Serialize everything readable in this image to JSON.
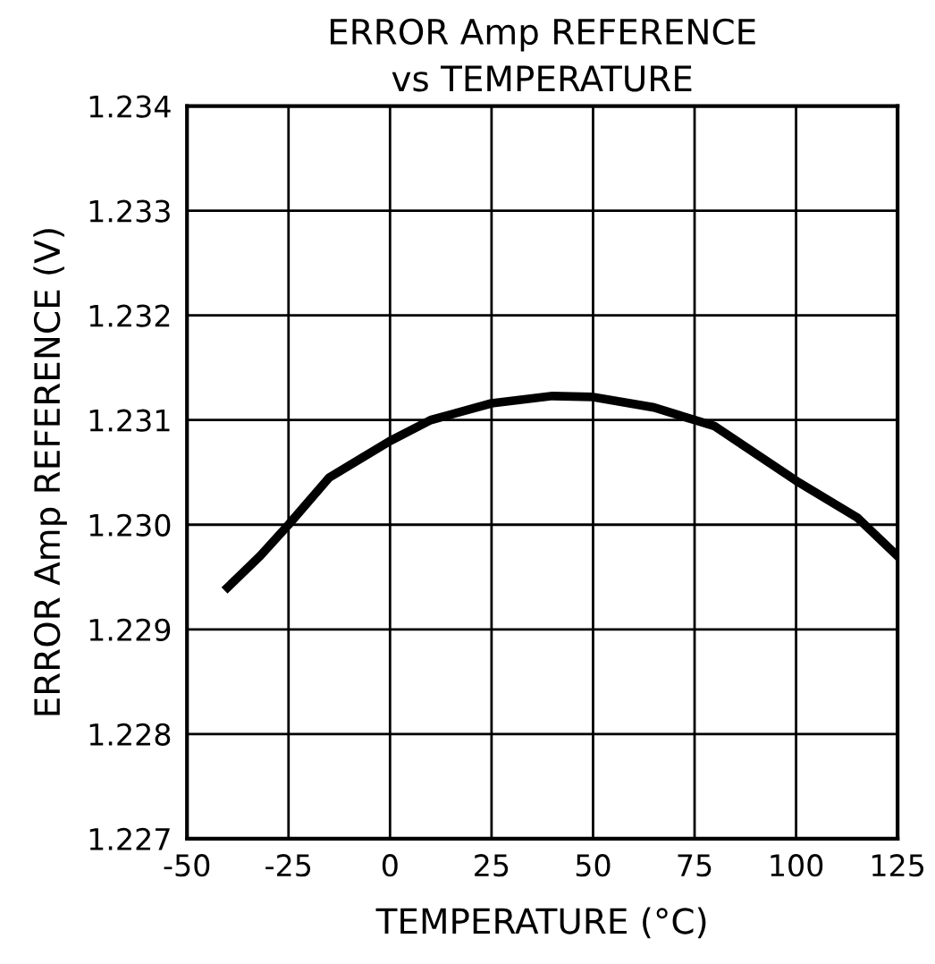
{
  "chart_data": {
    "type": "line",
    "title": "ERROR Amp REFERENCE\nvs TEMPERATURE",
    "xlabel": "TEMPERATURE (°C)",
    "ylabel": "ERROR Amp REFERENCE (V)",
    "series": [
      {
        "color": "#000000",
        "x": [
          -40,
          -32,
          -25,
          -15,
          0,
          10,
          25,
          40,
          50,
          65,
          75,
          80,
          100,
          115,
          125
        ],
        "values": [
          1.2294,
          1.2297,
          1.23,
          1.23045,
          1.2308,
          1.231,
          1.23116,
          1.23123,
          1.23122,
          1.23112,
          1.231,
          1.23094,
          1.23042,
          1.23007,
          1.2297
        ]
      }
    ],
    "xlim": [
      -50,
      125
    ],
    "xticks": [
      {
        "value": -50,
        "label": "-50"
      },
      {
        "value": -25,
        "label": "-25"
      },
      0,
      25,
      50,
      75,
      100,
      125
    ],
    "ylim": [
      1.227,
      1.234
    ],
    "yticks": [
      1.227,
      1.228,
      1.229,
      {
        "value": 1.23,
        "label": "1.230"
      },
      1.231,
      1.232,
      1.233,
      1.234
    ],
    "grid": true,
    "legend": false,
    "marker": "none",
    "line_style": "solid"
  }
}
